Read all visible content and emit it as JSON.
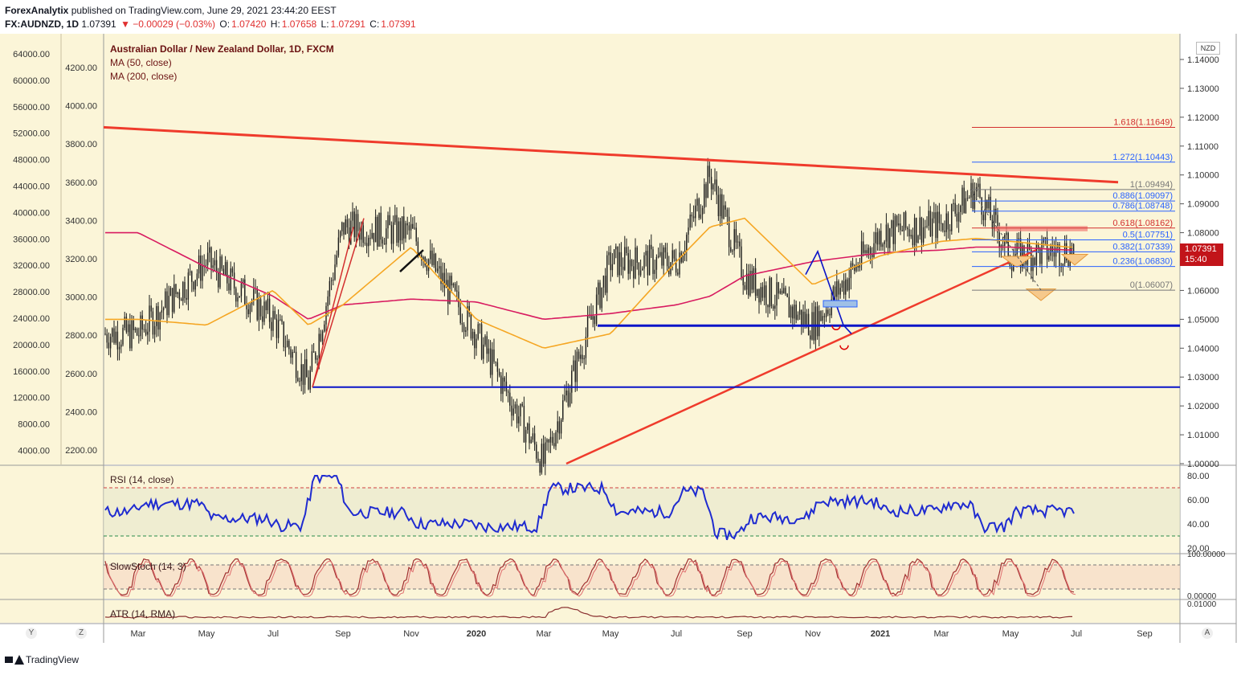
{
  "header": {
    "publisher": "ForexAnalytix",
    "published_text": "published on TradingView.com, June 29, 2021 23:44:20 EEST",
    "symbol": "FX:AUDNZD, 1D",
    "last": "1.07391",
    "change": "▼ −0.00029 (−0.03%)",
    "open_label": "O:",
    "open": "1.07420",
    "high_label": "H:",
    "high": "1.07658",
    "low_label": "L:",
    "low": "1.07291",
    "close_label": "C:",
    "close": "1.07391"
  },
  "legend": {
    "title": "Australian Dollar / New Zealand Dollar, 1D, FXCM",
    "ma50": "MA (50, close)",
    "ma200": "MA (200, close)"
  },
  "panes": {
    "rsi_label": "RSI (14, close)",
    "stoch_label": "SlowStoch (14, 3)",
    "atr_label": "ATR (14, RMA)"
  },
  "price_axis": {
    "currency": "NZD",
    "ticks": [
      "1.14000",
      "1.13000",
      "1.12000",
      "1.11000",
      "1.10000",
      "1.09000",
      "1.08000",
      "1.07000",
      "1.06000",
      "1.05000",
      "1.04000",
      "1.03000",
      "1.02000",
      "1.01000",
      "1.00000"
    ],
    "last_price": "1.07391",
    "countdown": "15:40"
  },
  "left_axis_outer": {
    "ticks": [
      "64000.00",
      "60000.00",
      "56000.00",
      "52000.00",
      "48000.00",
      "44000.00",
      "40000.00",
      "36000.00",
      "32000.00",
      "28000.00",
      "24000.00",
      "20000.00",
      "16000.00",
      "12000.00",
      "8000.00",
      "4000.00"
    ]
  },
  "left_axis_inner": {
    "ticks": [
      "4200.00",
      "4000.00",
      "3800.00",
      "3600.00",
      "3400.00",
      "3200.00",
      "3000.00",
      "2800.00",
      "2600.00",
      "2400.00",
      "2200.00"
    ]
  },
  "rsi_axis": {
    "ticks": [
      "80.00",
      "60.00",
      "40.00",
      "20.00"
    ]
  },
  "stoch_axis": {
    "ticks": [
      "100.00000",
      "0.00000"
    ]
  },
  "atr_axis": {
    "ticks": [
      "0.01000"
    ]
  },
  "time_axis": {
    "ticks": [
      "Mar",
      "May",
      "Jul",
      "Sep",
      "Nov",
      "2020",
      "Mar",
      "May",
      "Jul",
      "Sep",
      "Nov",
      "2021",
      "Mar",
      "May",
      "Jul",
      "Sep"
    ],
    "corner_left": "Y",
    "corner_mid": "Z",
    "corner_right": "A"
  },
  "fib_levels": [
    {
      "label": "1.618(1.11649)",
      "value": 1.11649
    },
    {
      "label": "1.272(1.10443)",
      "value": 1.10443
    },
    {
      "label": "1(1.09494)",
      "value": 1.09494
    },
    {
      "label": "0.886(1.09097)",
      "value": 1.09097
    },
    {
      "label": "0.786(1.08748)",
      "value": 1.08748
    },
    {
      "label": "0.618(1.08162)",
      "value": 1.08162
    },
    {
      "label": "0.5(1.07751)",
      "value": 1.07751
    },
    {
      "label": "0.382(1.07339)",
      "value": 1.07339
    },
    {
      "label": "0.236(1.06830)",
      "value": 1.0683
    },
    {
      "label": "0(1.06007)",
      "value": 1.06007
    }
  ],
  "colors": {
    "background": "#fbf5d8",
    "candle": "#1a1a1a",
    "ma50": "#f5a623",
    "ma200": "#d81b60",
    "trendline": "#ef3b2c",
    "support": "#0a14c8",
    "rsi": "#1f2bd0",
    "stoch": "#a03030",
    "fib_red": "#d32f2f",
    "fib_blue": "#2962ff"
  },
  "footer": {
    "brand": "TradingView"
  },
  "chart_data": {
    "type": "line",
    "title": "Australian Dollar / New Zealand Dollar, 1D, FXCM",
    "ylabel": "NZD",
    "ylim": [
      1.0,
      1.14
    ],
    "x": [
      "2019-03",
      "2019-05",
      "2019-07",
      "2019-08",
      "2019-09",
      "2019-11",
      "2020-01",
      "2020-03",
      "2020-05",
      "2020-07",
      "2020-08",
      "2020-10",
      "2020-11",
      "2021-01",
      "2021-03",
      "2021-04",
      "2021-05",
      "2021-06"
    ],
    "series": [
      {
        "name": "FX:AUDNZD",
        "values": [
          1.045,
          1.07,
          1.05,
          1.028,
          1.082,
          1.08,
          1.045,
          1.0,
          1.07,
          1.07,
          1.1,
          1.065,
          1.048,
          1.08,
          1.083,
          1.095,
          1.072,
          1.074
        ]
      },
      {
        "name": "MA (50, close)",
        "values": [
          1.05,
          1.048,
          1.06,
          1.048,
          1.055,
          1.075,
          1.05,
          1.04,
          1.045,
          1.07,
          1.082,
          1.085,
          1.062,
          1.072,
          1.077,
          1.078,
          1.077,
          1.075
        ]
      },
      {
        "name": "MA (200, close)",
        "values": [
          1.08,
          1.068,
          1.058,
          1.05,
          1.055,
          1.057,
          1.056,
          1.05,
          1.052,
          1.055,
          1.058,
          1.065,
          1.07,
          1.073,
          1.074,
          1.075,
          1.075,
          1.074
        ]
      }
    ]
  }
}
